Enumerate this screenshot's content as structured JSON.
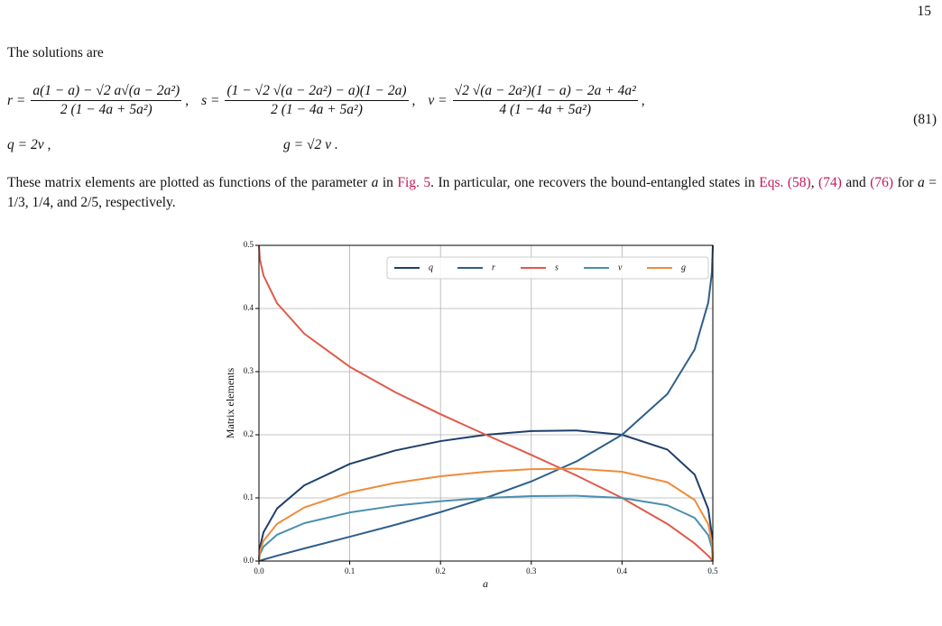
{
  "page_number": "15",
  "intro": "The solutions are",
  "equation": {
    "fractions": [
      {
        "lhs": "r =",
        "num": "a(1 − a) − √2 a√(a − 2a²)",
        "den": "2 (1 − 4a + 5a²)",
        "sep": ","
      },
      {
        "lhs": "s =",
        "num": "(1 − √2 √(a − 2a²) − a)(1 − 2a)",
        "den": "2 (1 − 4a + 5a²)",
        "sep": ","
      },
      {
        "lhs": "v =",
        "num": "√2 √(a − 2a²)(1 − a) − 2a + 4a²",
        "den": "4 (1 − 4a + 5a²)",
        "sep": ","
      }
    ],
    "second_line": [
      "q = 2v ,",
      "g = √2 v ."
    ],
    "number": "(81)"
  },
  "paragraph": [
    "These matrix elements are plotted as functions of the parameter ",
    "a",
    " in ",
    "Fig. 5",
    ". In particular, one recovers the bound-entangled states in ",
    "Eqs. (58)",
    ", ",
    "(74)",
    " and ",
    "(76)",
    " for ",
    "a",
    " = 1/3, 1/4, and 2/5, respectively."
  ],
  "chart_data": {
    "type": "line",
    "xlabel": "a",
    "ylabel": "Matrix elements",
    "x": [
      0,
      0.001,
      0.005,
      0.02,
      0.05,
      0.1,
      0.15,
      0.2,
      0.25,
      0.3,
      0.35,
      0.4,
      0.45,
      0.48,
      0.495,
      0.499,
      0.5
    ],
    "series": [
      {
        "name": "q",
        "color": "#1f3f6b",
        "values": [
          0,
          0.0214,
          0.0455,
          0.0833,
          0.12,
          0.1538,
          0.1751,
          0.1899,
          0.2,
          0.2059,
          0.2068,
          0.2,
          0.1765,
          0.1369,
          0.0823,
          0.0409,
          0
        ]
      },
      {
        "name": "r",
        "color": "#2e5f8a",
        "values": [
          0,
          0.0005,
          0.0023,
          0.0085,
          0.02,
          0.0385,
          0.0573,
          0.0775,
          0.1,
          0.1261,
          0.1579,
          0.2,
          0.2647,
          0.3352,
          0.4094,
          0.4572,
          0.5
        ]
      },
      {
        "name": "s",
        "color": "#e05a4a",
        "values": [
          0.5,
          0.4781,
          0.4523,
          0.4082,
          0.36,
          0.3077,
          0.2675,
          0.2326,
          0.2,
          0.1681,
          0.1354,
          0.1,
          0.0588,
          0.0279,
          0.0083,
          0.0018,
          0
        ]
      },
      {
        "name": "v",
        "color": "#4a8fad",
        "values": [
          0,
          0.0107,
          0.0227,
          0.0417,
          0.06,
          0.0769,
          0.0876,
          0.0949,
          0.1,
          0.1029,
          0.1034,
          0.1,
          0.0882,
          0.0684,
          0.0411,
          0.0205,
          0
        ]
      },
      {
        "name": "g",
        "color": "#ef8c3a",
        "values": [
          0,
          0.0151,
          0.0321,
          0.0589,
          0.0849,
          0.1088,
          0.1238,
          0.1343,
          0.1414,
          0.1456,
          0.1462,
          0.1414,
          0.1248,
          0.0968,
          0.0582,
          0.0289,
          0
        ]
      }
    ],
    "xlim": [
      0,
      0.5
    ],
    "ylim": [
      0,
      0.5
    ],
    "xticks": [
      {
        "value": 0,
        "label": "0.0"
      },
      0.1,
      0.2,
      0.3,
      0.4,
      0.5
    ],
    "yticks": [
      {
        "value": 0,
        "label": "0.0"
      },
      0.1,
      0.2,
      0.3,
      0.4,
      0.5
    ],
    "grid": true,
    "legend": "upper right"
  }
}
